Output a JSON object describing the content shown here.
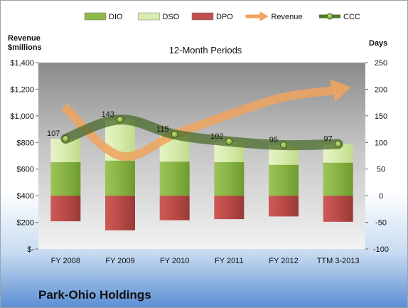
{
  "company": "Park-Ohio Holdings",
  "chart_data": {
    "type": "bar",
    "title": "12-Month Periods",
    "left_axis": {
      "title_line1": "Revenue",
      "title_line2": "$millions",
      "ylim": [
        0,
        1400
      ],
      "ticks": [
        0,
        200,
        400,
        600,
        800,
        1000,
        1200,
        1400
      ],
      "tick_labels": [
        "$-",
        "$200",
        "$400",
        "$600",
        "$800",
        "$1,000",
        "$1,200",
        "$1,400"
      ]
    },
    "right_axis": {
      "title": "Days",
      "ylim": [
        -100,
        250
      ],
      "ticks": [
        -100,
        -50,
        0,
        50,
        100,
        150,
        200,
        250
      ],
      "tick_labels": [
        "-100",
        "-50",
        "0",
        "50",
        "100",
        "150",
        "200",
        "250"
      ]
    },
    "categories": [
      "FY 2008",
      "FY 2009",
      "FY 2010",
      "FY 2011",
      "FY 2012",
      "TTM 3-2013"
    ],
    "legend": [
      {
        "name": "DIO",
        "kind": "box",
        "color": "#8fb84a"
      },
      {
        "name": "DSO",
        "kind": "box",
        "color": "#d9ecb0"
      },
      {
        "name": "DPO",
        "kind": "box",
        "color": "#c0504d"
      },
      {
        "name": "Revenue",
        "kind": "arrow",
        "color": "#f0a35e"
      },
      {
        "name": "CCC",
        "kind": "dotline",
        "color": "#4f7a28"
      }
    ],
    "legend_position": "top",
    "series": [
      {
        "name": "DIO",
        "axis": "right",
        "values": [
          63,
          66,
          64,
          63,
          58,
          62
        ],
        "color": "#8fb84a"
      },
      {
        "name": "DSO",
        "axis": "right",
        "values": [
          44,
          77,
          51,
          38,
          37,
          35
        ],
        "color": "#d9ecb0"
      },
      {
        "name": "DPO",
        "axis": "right",
        "values": [
          -48,
          -65,
          -46,
          -44,
          -39,
          -49
        ],
        "color": "#c0504d"
      },
      {
        "name": "Revenue",
        "axis": "left",
        "values": [
          1070,
          700,
          860,
          1010,
          1140,
          1200
        ],
        "color": "#f0a35e"
      },
      {
        "name": "CCC",
        "axis": "right",
        "values": [
          107,
          143,
          115,
          102,
          95,
          97
        ],
        "color": "#4f7a28"
      }
    ],
    "ccc_labels": [
      "107",
      "143",
      "115",
      "102",
      "95",
      "97"
    ],
    "grid": false
  }
}
